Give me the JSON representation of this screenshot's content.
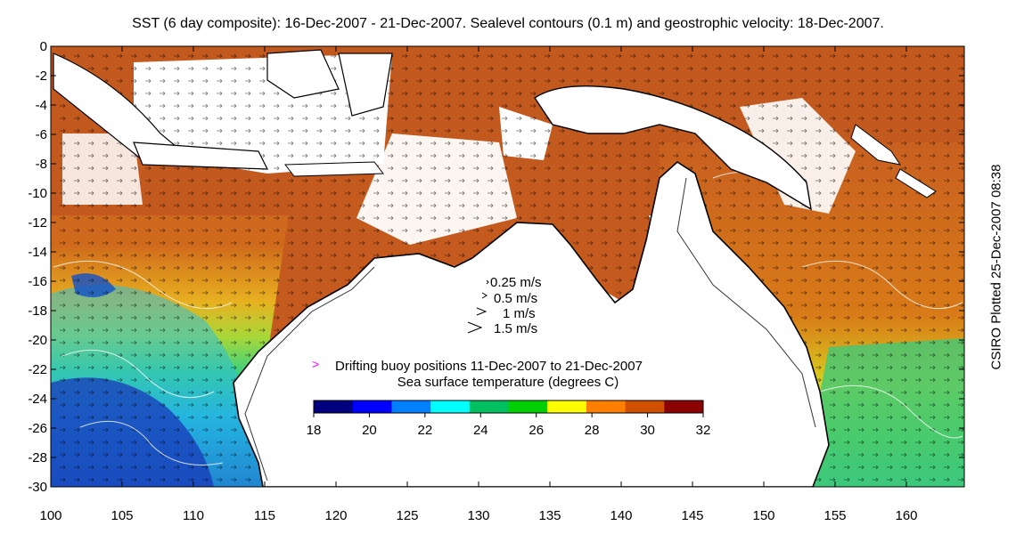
{
  "title": "SST (6 day composite): 16-Dec-2007 - 21-Dec-2007. Sealevel contours (0.1 m) and geostrophic velocity: 18-Dec-2007.",
  "credit": "CSIRO Plotted 25-Dec-2007 08:38",
  "axes": {
    "x_ticks": [
      "100",
      "105",
      "110",
      "115",
      "120",
      "125",
      "130",
      "135",
      "140",
      "145",
      "150",
      "155",
      "160"
    ],
    "y_ticks": [
      "0",
      "-2",
      "-4",
      "-6",
      "-8",
      "-10",
      "-12",
      "-14",
      "-16",
      "-18",
      "-20",
      "-22",
      "-24",
      "-26",
      "-28",
      "-30"
    ]
  },
  "velocity_legend": [
    "0.25 m/s",
    "0.5 m/s",
    "1 m/s",
    "1.5 m/s"
  ],
  "buoy_legend": {
    "marker": ">",
    "label": "Drifting buoy positions 11-Dec-2007 to 21-Dec-2007",
    "color": "#ff00ff"
  },
  "colorbar": {
    "title": "Sea surface temperature (degrees C)",
    "ticks": [
      "18",
      "20",
      "22",
      "24",
      "26",
      "28",
      "30",
      "32"
    ],
    "colors": [
      "#00007f",
      "#0000ff",
      "#007fff",
      "#00ffff",
      "#00c060",
      "#00d000",
      "#ffff00",
      "#ff8000",
      "#d05000",
      "#8b0000"
    ]
  }
}
